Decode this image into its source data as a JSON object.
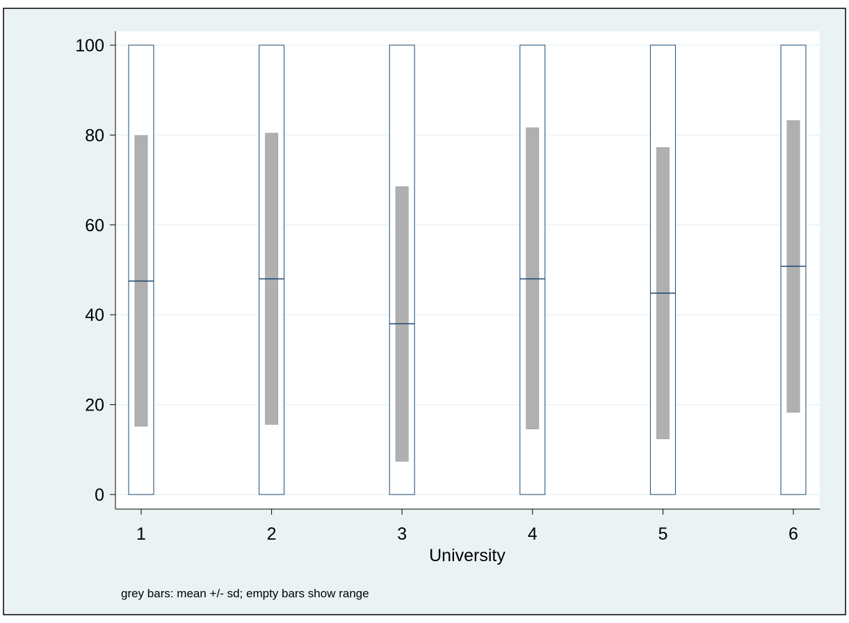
{
  "chart_data": {
    "type": "bar",
    "xlabel": "University",
    "ylabel": "",
    "note": "grey bars: mean +/- sd; empty bars show range",
    "categories": [
      "1",
      "2",
      "3",
      "4",
      "5",
      "6"
    ],
    "x_ticks": [
      "1",
      "2",
      "3",
      "4",
      "5",
      "6"
    ],
    "y_ticks": [
      "0",
      "20",
      "40",
      "60",
      "80",
      "100"
    ],
    "ylim": [
      0,
      100
    ],
    "grid": true,
    "series": [
      {
        "min": [
          0,
          0,
          0,
          0,
          0,
          0
        ]
      },
      {
        "max": [
          100,
          100,
          100,
          100,
          100,
          100
        ]
      },
      {
        "mean": [
          47.5,
          48.0,
          38.0,
          48.0,
          44.8,
          50.8
        ]
      },
      {
        "mean_minus_sd": [
          15.2,
          15.6,
          7.4,
          14.6,
          12.4,
          18.3
        ]
      },
      {
        "mean_plus_sd": [
          79.9,
          80.4,
          68.5,
          81.6,
          77.2,
          83.2
        ]
      }
    ],
    "colors": {
      "background": "#eaf2f3",
      "plot_background": "#ffffff",
      "grid": "#eaf2f3",
      "range_bar_outline": "#1a476f",
      "sd_bar_fill": "#b0b0b0",
      "mean_line": "#1a476f"
    }
  }
}
